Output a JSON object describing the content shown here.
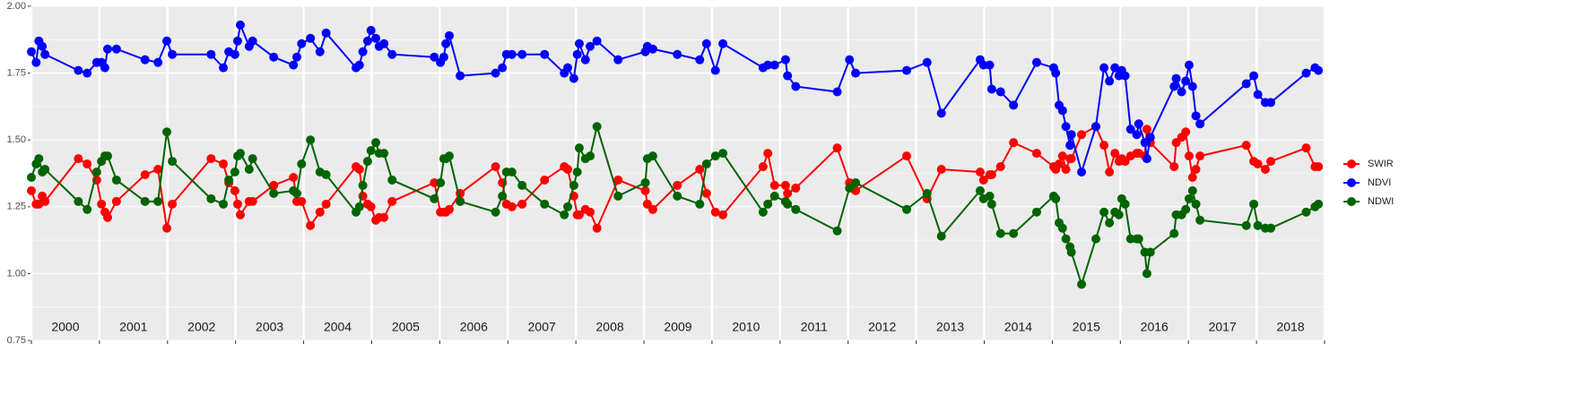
{
  "chart_data": {
    "type": "line",
    "x": [
      2000.0,
      2000.07,
      2000.11,
      2000.16,
      2000.2,
      2000.69,
      2000.82,
      2000.96,
      2001.03,
      2001.08,
      2001.12,
      2001.25,
      2001.67,
      2001.86,
      2001.99,
      2002.07,
      2002.64,
      2002.82,
      2002.9,
      2002.99,
      2003.03,
      2003.07,
      2003.2,
      2003.25,
      2003.56,
      2003.85,
      2003.9,
      2003.97,
      2004.1,
      2004.24,
      2004.33,
      2004.77,
      2004.82,
      2004.87,
      2004.94,
      2004.99,
      2005.06,
      2005.11,
      2005.18,
      2005.3,
      2005.92,
      2006.01,
      2006.06,
      2006.09,
      2006.14,
      2006.3,
      2006.82,
      2006.92,
      2006.98,
      2007.06,
      2007.21,
      2007.54,
      2007.83,
      2007.88,
      2007.97,
      2008.02,
      2008.05,
      2008.14,
      2008.21,
      2008.31,
      2008.62,
      2009.02,
      2009.05,
      2009.13,
      2009.49,
      2009.82,
      2009.92,
      2010.05,
      2010.16,
      2010.75,
      2010.82,
      2010.92,
      2011.08,
      2011.11,
      2011.23,
      2011.84,
      2012.02,
      2012.11,
      2012.86,
      2013.16,
      2013.37,
      2013.94,
      2013.99,
      2014.08,
      2014.11,
      2014.24,
      2014.43,
      2014.77,
      2015.02,
      2015.05,
      2015.1,
      2015.15,
      2015.2,
      2015.26,
      2015.28,
      2015.43,
      2015.64,
      2015.76,
      2015.84,
      2015.92,
      2015.98,
      2016.02,
      2016.07,
      2016.15,
      2016.24,
      2016.27,
      2016.36,
      2016.39,
      2016.44,
      2016.79,
      2016.82,
      2016.9,
      2016.96,
      2017.01,
      2017.06,
      2017.11,
      2017.17,
      2017.85,
      2017.96,
      2018.02,
      2018.13,
      2018.21,
      2018.73,
      2018.86,
      2018.91
    ],
    "series": [
      {
        "name": "SWIR",
        "color": "#ff0000",
        "values": [
          1.31,
          1.26,
          1.26,
          1.29,
          1.27,
          1.43,
          1.41,
          1.35,
          1.26,
          1.23,
          1.21,
          1.27,
          1.37,
          1.39,
          1.17,
          1.26,
          1.43,
          1.41,
          1.34,
          1.31,
          1.26,
          1.22,
          1.27,
          1.27,
          1.33,
          1.36,
          1.27,
          1.27,
          1.18,
          1.23,
          1.26,
          1.4,
          1.39,
          1.29,
          1.26,
          1.25,
          1.2,
          1.21,
          1.21,
          1.27,
          1.34,
          1.23,
          1.23,
          1.23,
          1.24,
          1.3,
          1.4,
          1.34,
          1.26,
          1.25,
          1.26,
          1.35,
          1.4,
          1.39,
          1.29,
          1.22,
          1.22,
          1.24,
          1.23,
          1.17,
          1.35,
          1.31,
          1.26,
          1.24,
          1.33,
          1.39,
          1.3,
          1.23,
          1.22,
          1.4,
          1.45,
          1.33,
          1.33,
          1.3,
          1.32,
          1.47,
          1.34,
          1.31,
          1.44,
          1.28,
          1.39,
          1.38,
          1.35,
          1.37,
          1.37,
          1.4,
          1.49,
          1.45,
          1.4,
          1.39,
          1.41,
          1.44,
          1.39,
          1.43,
          1.43,
          1.52,
          1.55,
          1.48,
          1.38,
          1.45,
          1.42,
          1.43,
          1.42,
          1.44,
          1.45,
          1.45,
          1.44,
          1.54,
          1.49,
          1.4,
          1.49,
          1.51,
          1.53,
          1.44,
          1.36,
          1.39,
          1.44,
          1.48,
          1.42,
          1.41,
          1.39,
          1.42,
          1.47,
          1.4,
          1.4
        ]
      },
      {
        "name": "NDVI",
        "color": "#0000ff",
        "values": [
          1.83,
          1.79,
          1.87,
          1.85,
          1.82,
          1.76,
          1.75,
          1.79,
          1.79,
          1.77,
          1.84,
          1.84,
          1.8,
          1.79,
          1.87,
          1.82,
          1.82,
          1.77,
          1.83,
          1.82,
          1.87,
          1.93,
          1.85,
          1.87,
          1.81,
          1.78,
          1.81,
          1.86,
          1.88,
          1.83,
          1.9,
          1.77,
          1.78,
          1.83,
          1.87,
          1.91,
          1.88,
          1.85,
          1.86,
          1.82,
          1.81,
          1.79,
          1.81,
          1.86,
          1.89,
          1.74,
          1.75,
          1.77,
          1.82,
          1.82,
          1.82,
          1.82,
          1.75,
          1.77,
          1.73,
          1.82,
          1.86,
          1.8,
          1.85,
          1.87,
          1.8,
          1.83,
          1.85,
          1.84,
          1.82,
          1.8,
          1.86,
          1.76,
          1.86,
          1.77,
          1.78,
          1.78,
          1.8,
          1.74,
          1.7,
          1.68,
          1.8,
          1.75,
          1.76,
          1.79,
          1.6,
          1.8,
          1.78,
          1.78,
          1.69,
          1.68,
          1.63,
          1.79,
          1.77,
          1.75,
          1.63,
          1.61,
          1.55,
          1.48,
          1.52,
          1.38,
          1.55,
          1.77,
          1.72,
          1.77,
          1.74,
          1.76,
          1.74,
          1.54,
          1.52,
          1.56,
          1.49,
          1.43,
          1.51,
          1.7,
          1.73,
          1.68,
          1.72,
          1.78,
          1.7,
          1.59,
          1.56,
          1.71,
          1.74,
          1.67,
          1.64,
          1.64,
          1.75,
          1.77,
          1.76
        ]
      },
      {
        "name": "NDWI",
        "color": "#006400",
        "values": [
          1.36,
          1.41,
          1.43,
          1.38,
          1.39,
          1.27,
          1.24,
          1.38,
          1.42,
          1.44,
          1.44,
          1.35,
          1.27,
          1.27,
          1.53,
          1.42,
          1.28,
          1.26,
          1.35,
          1.38,
          1.44,
          1.45,
          1.39,
          1.43,
          1.3,
          1.31,
          1.3,
          1.41,
          1.5,
          1.38,
          1.37,
          1.23,
          1.25,
          1.33,
          1.42,
          1.46,
          1.49,
          1.45,
          1.45,
          1.35,
          1.28,
          1.34,
          1.43,
          1.43,
          1.44,
          1.27,
          1.23,
          1.29,
          1.38,
          1.38,
          1.33,
          1.26,
          1.22,
          1.25,
          1.33,
          1.38,
          1.47,
          1.43,
          1.44,
          1.55,
          1.29,
          1.34,
          1.43,
          1.44,
          1.29,
          1.26,
          1.41,
          1.44,
          1.45,
          1.23,
          1.26,
          1.29,
          1.27,
          1.26,
          1.24,
          1.16,
          1.32,
          1.34,
          1.24,
          1.3,
          1.14,
          1.31,
          1.28,
          1.29,
          1.26,
          1.15,
          1.15,
          1.23,
          1.29,
          1.28,
          1.19,
          1.17,
          1.13,
          1.1,
          1.08,
          0.96,
          1.13,
          1.23,
          1.19,
          1.23,
          1.22,
          1.28,
          1.26,
          1.13,
          1.13,
          1.13,
          1.08,
          1.0,
          1.08,
          1.15,
          1.22,
          1.22,
          1.24,
          1.28,
          1.31,
          1.26,
          1.2,
          1.18,
          1.26,
          1.18,
          1.17,
          1.17,
          1.23,
          1.25,
          1.26
        ]
      }
    ],
    "xlim": [
      2000,
      2019
    ],
    "xticks": [
      2000,
      2001,
      2002,
      2003,
      2004,
      2005,
      2006,
      2007,
      2008,
      2009,
      2010,
      2011,
      2012,
      2013,
      2014,
      2015,
      2016,
      2017,
      2018,
      2019
    ],
    "year_labels": [
      "2000",
      "2001",
      "2002",
      "2003",
      "2004",
      "2005",
      "2006",
      "2007",
      "2008",
      "2009",
      "2010",
      "2011",
      "2012",
      "2013",
      "2014",
      "2015",
      "2016",
      "2017",
      "2018"
    ],
    "ylim": [
      0.75,
      2.0
    ],
    "yticks": [
      {
        "value": 0.75,
        "label": "0.75"
      },
      {
        "value": 1.0,
        "label": "1.00"
      },
      {
        "value": 1.25,
        "label": "1.25"
      },
      {
        "value": 1.5,
        "label": "1.50"
      },
      {
        "value": 1.75,
        "label": "1.75"
      },
      {
        "value": 2.0,
        "label": "2.00"
      }
    ],
    "grid": true,
    "legend": "right"
  }
}
